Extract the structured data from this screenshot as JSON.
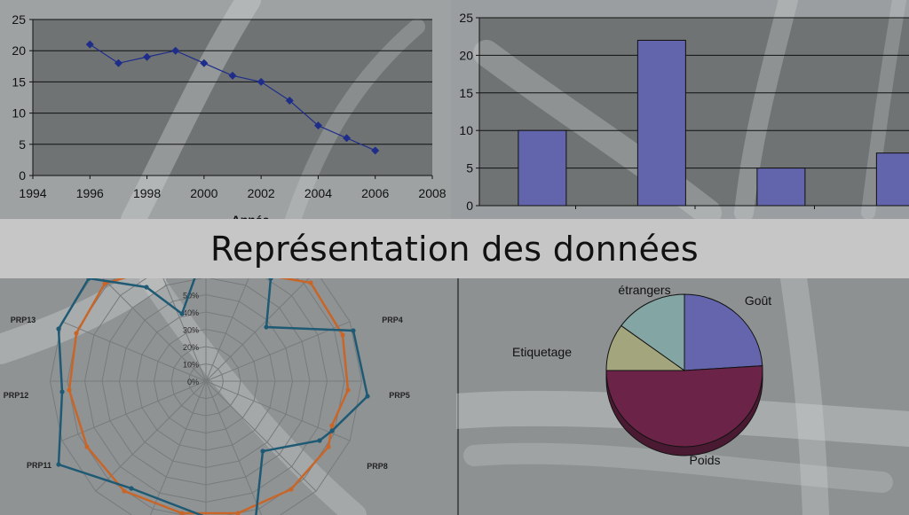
{
  "banner": {
    "title": "Représentation des données"
  },
  "chart_data": [
    {
      "type": "line",
      "x": [
        1996,
        1997,
        1998,
        1999,
        2000,
        2001,
        2002,
        2003,
        2004,
        2005,
        2006
      ],
      "series": [
        {
          "values": [
            21,
            18,
            19,
            20,
            18,
            16,
            15,
            12,
            8,
            6,
            4
          ]
        }
      ],
      "xlim": [
        1994,
        2008
      ],
      "ylim": [
        0,
        25
      ],
      "xticks": [
        "1994",
        "1996",
        "1998",
        "2000",
        "2002",
        "2004",
        "2006",
        "2008"
      ],
      "yticks": [
        "0",
        "5",
        "10",
        "15",
        "20",
        "25"
      ],
      "xlabel": "Année",
      "grid": true,
      "colors": {
        "line": "#1f2d8a",
        "plot_bg": "#6f7374"
      }
    },
    {
      "type": "bar",
      "categories": [
        "",
        "",
        "",
        ""
      ],
      "values": [
        10,
        22,
        5,
        7
      ],
      "ylim": [
        0,
        25
      ],
      "yticks": [
        "0",
        "5",
        "10",
        "15",
        "20",
        "25"
      ],
      "grid": true,
      "colors": {
        "bar": "#6264ac",
        "plot_bg": "#6f7374"
      }
    },
    {
      "type": "radar",
      "axes_visible": [
        "PRP4",
        "PRP5",
        "PRP8",
        "PRP11",
        "PRP12",
        "PRP13"
      ],
      "rticks": [
        "0%",
        "10%",
        "20%",
        "30%",
        "40%",
        "50%"
      ],
      "series": [
        {
          "color": "#1f5a74"
        },
        {
          "color": "#c8662a"
        }
      ]
    },
    {
      "type": "pie",
      "slices": [
        {
          "label": "Goût",
          "value": 24,
          "color": "#6465ad"
        },
        {
          "label": "Poids",
          "value": 51,
          "color": "#6b2447"
        },
        {
          "label": "Etiquetage",
          "value": 10,
          "color": "#a3a57c"
        },
        {
          "label": "étrangers",
          "value": 15,
          "color": "#83a5a3"
        }
      ]
    }
  ]
}
